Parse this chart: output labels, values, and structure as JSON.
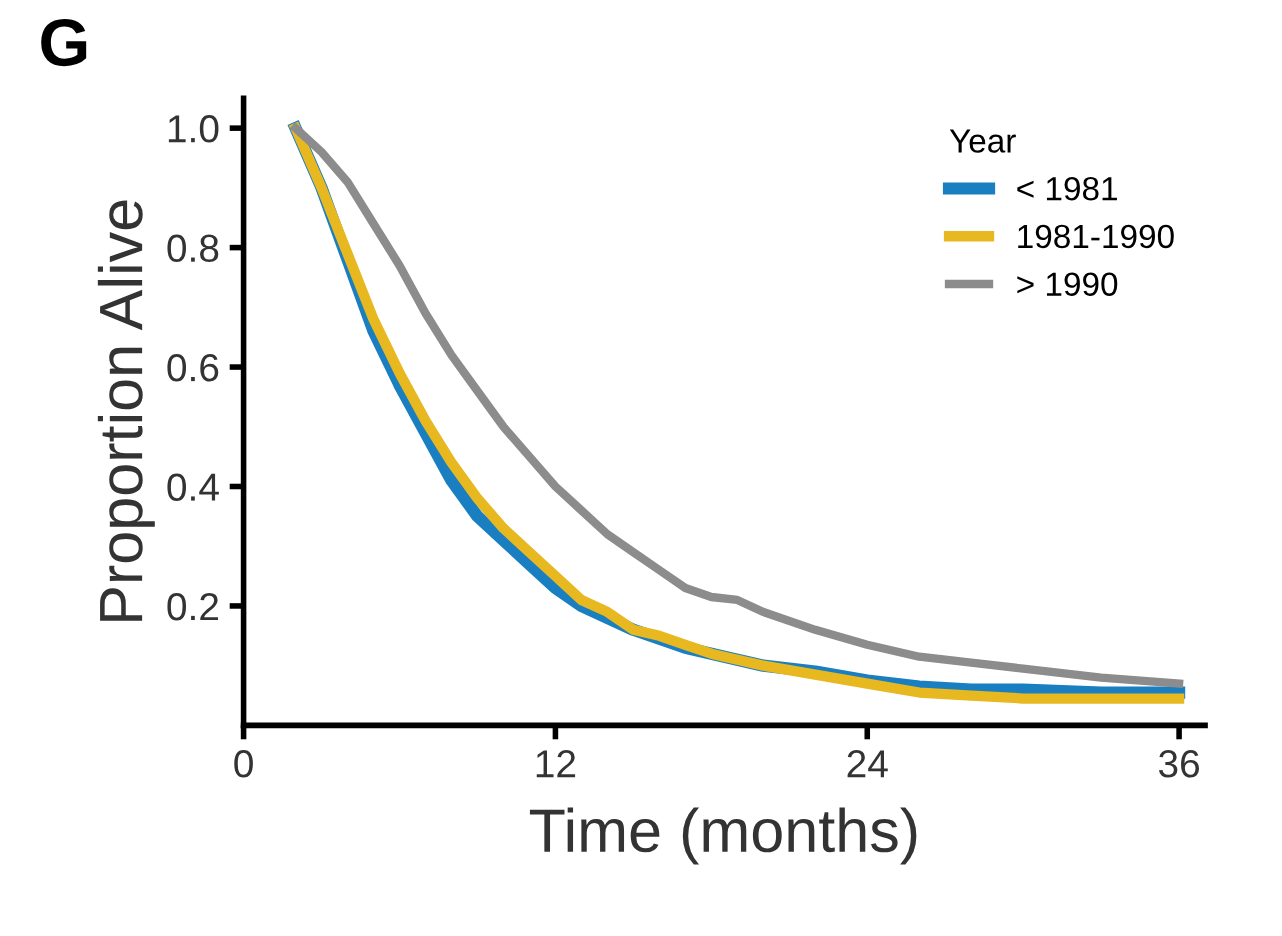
{
  "chart_data": {
    "type": "line",
    "title": "G",
    "xlabel": "Time (months)",
    "ylabel": "Proportion Alive",
    "legend_title": "Year",
    "legend": "top right",
    "grid": false,
    "marker": "none",
    "line_style": "solid",
    "xlim": [
      0,
      37
    ],
    "xticks": [
      0,
      12,
      24,
      36
    ],
    "ylim": [
      0,
      1.05
    ],
    "yticks": [
      {
        "value": 0.2,
        "label": "0.2"
      },
      {
        "value": 0.4,
        "label": "0.4"
      },
      {
        "value": 0.6,
        "label": "0.6"
      },
      {
        "value": 0.8,
        "label": "0.8"
      },
      {
        "value": 1.0,
        "label": "1.0"
      }
    ],
    "x": [
      2,
      3,
      4,
      5,
      6,
      7,
      8,
      9,
      10,
      11,
      12,
      13,
      14,
      15,
      16,
      17,
      18,
      19,
      20,
      22,
      24,
      26,
      28,
      30,
      33,
      36
    ],
    "series": [
      {
        "name": "< 1981",
        "color": "#1a7fc1",
        "values": [
          1.0,
          0.9,
          0.78,
          0.66,
          0.57,
          0.49,
          0.41,
          0.35,
          0.31,
          0.27,
          0.23,
          0.2,
          0.18,
          0.16,
          0.145,
          0.13,
          0.12,
          0.11,
          0.1,
          0.09,
          0.075,
          0.065,
          0.06,
          0.06,
          0.055,
          0.055
        ]
      },
      {
        "name": "1981-1990",
        "color": "#e8b820",
        "values": [
          1.0,
          0.9,
          0.79,
          0.68,
          0.59,
          0.51,
          0.44,
          0.38,
          0.33,
          0.29,
          0.25,
          0.21,
          0.19,
          0.16,
          0.15,
          0.135,
          0.12,
          0.11,
          0.1,
          0.085,
          0.07,
          0.055,
          0.05,
          0.045,
          0.045,
          0.045
        ]
      },
      {
        "name": "> 1990",
        "color": "#8c8c8c",
        "values": [
          1.0,
          0.96,
          0.91,
          0.84,
          0.77,
          0.69,
          0.62,
          0.56,
          0.5,
          0.45,
          0.4,
          0.36,
          0.32,
          0.29,
          0.26,
          0.23,
          0.215,
          0.21,
          0.19,
          0.16,
          0.135,
          0.115,
          0.105,
          0.095,
          0.08,
          0.07
        ]
      }
    ]
  }
}
